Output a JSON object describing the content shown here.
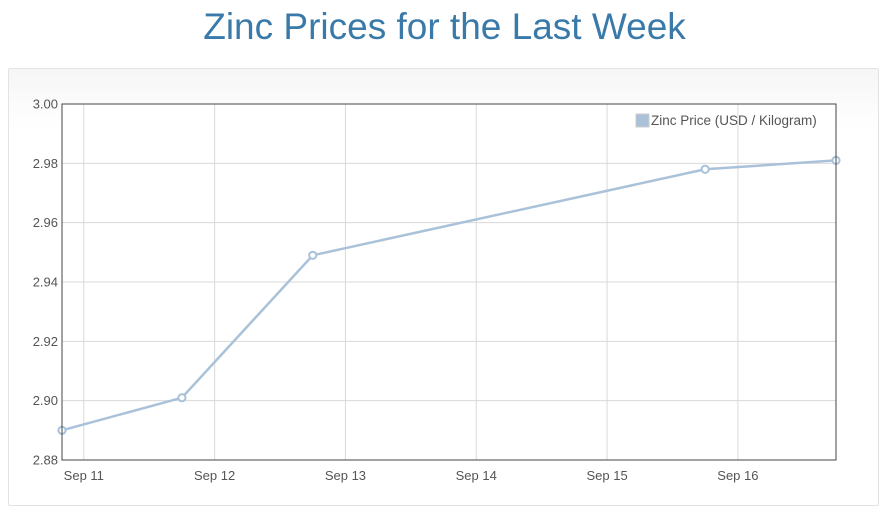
{
  "page": {
    "title": "Zinc Prices for the Last Week"
  },
  "colors": {
    "title": "#3a7aa8",
    "series_line": "#a9c2d9",
    "grid": "#d9d9d9",
    "plot_border": "#444444"
  },
  "chart_data": {
    "type": "line",
    "title": "",
    "xlabel": "",
    "ylabel": "",
    "x_ticks": [
      "Sep 11",
      "Sep 12",
      "Sep 13",
      "Sep 14",
      "Sep 15",
      "Sep 16"
    ],
    "y_ticks": [
      "3.00",
      "2.98",
      "2.96",
      "2.94",
      "2.92",
      "2.90",
      "2.88"
    ],
    "ylim": [
      2.88,
      3.0
    ],
    "xlim": [
      "2015-09-10T20:00",
      "2015-09-16T18:00"
    ],
    "grid": true,
    "legend_position": "top-right",
    "series": [
      {
        "name": "Zinc Price (USD / Kilogram)",
        "color": "#a9c2d9",
        "points": [
          {
            "x": "2015-09-10T20:00",
            "y": 2.89
          },
          {
            "x": "2015-09-11T18:00",
            "y": 2.901
          },
          {
            "x": "2015-09-12T18:00",
            "y": 2.949
          },
          {
            "x": "2015-09-15T18:00",
            "y": 2.978
          },
          {
            "x": "2015-09-16T18:00",
            "y": 2.981
          }
        ]
      }
    ]
  }
}
